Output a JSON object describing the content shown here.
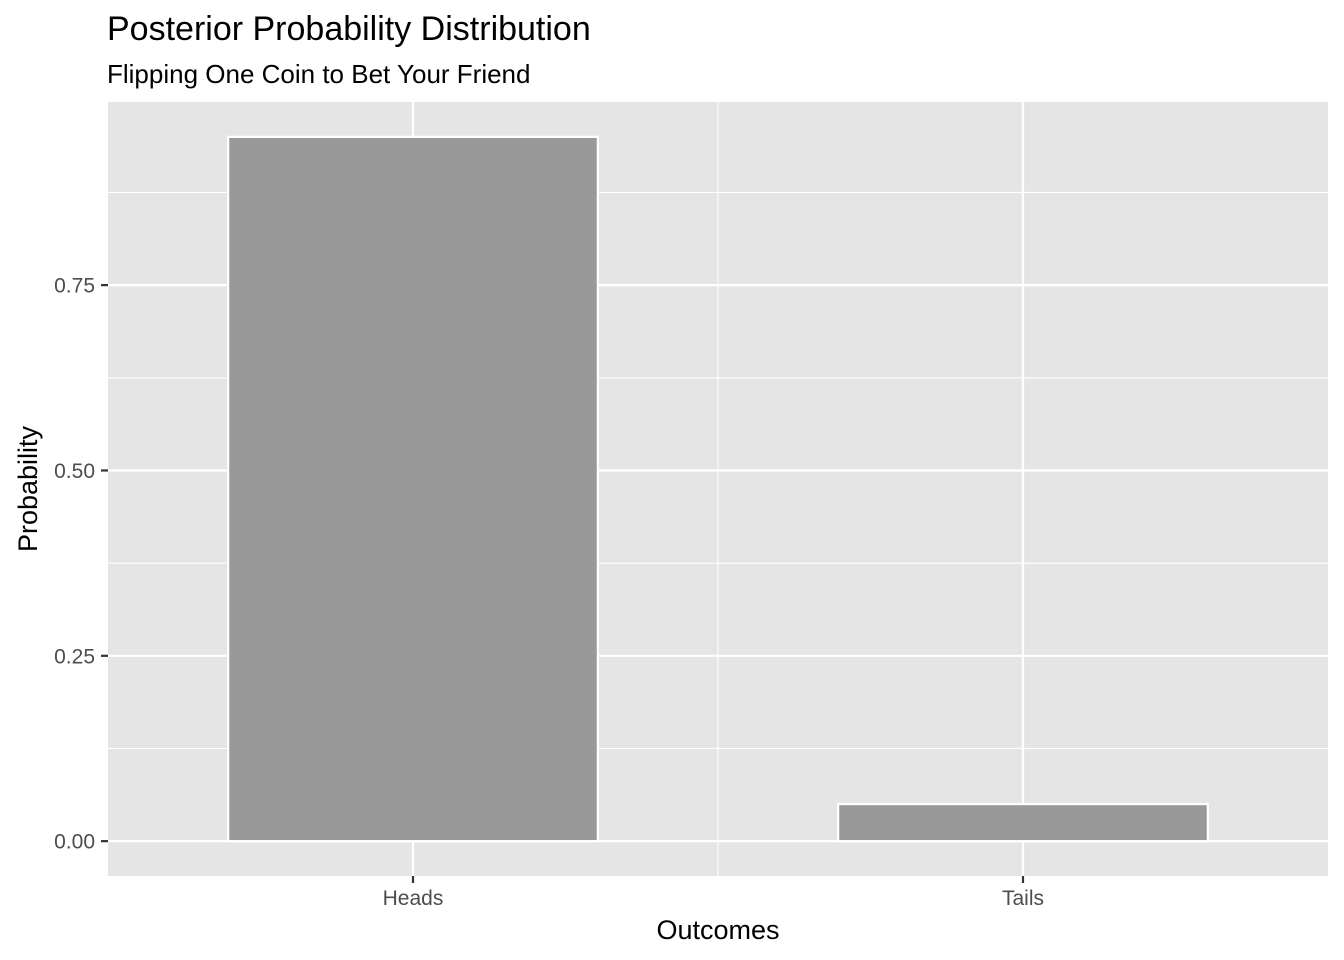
{
  "chart_data": {
    "type": "bar",
    "title": "Posterior Probability Distribution",
    "subtitle": "Flipping One Coin to Bet Your Friend",
    "xlabel": "Outcomes",
    "ylabel": "Probability",
    "categories": [
      "Heads",
      "Tails"
    ],
    "values": [
      0.95,
      0.05
    ],
    "ylim": [
      -0.047,
      0.997
    ],
    "yticks": [
      0.0,
      0.25,
      0.5,
      0.75
    ],
    "ytick_labels": [
      "0.00",
      "0.25",
      "0.50",
      "0.75"
    ],
    "grid": true,
    "colors": {
      "panel_background": "#e5e5e5",
      "gridline": "#ffffff",
      "bar_fill": "#999999",
      "bar_outline": "#ffffff",
      "tick_mark": "#333333"
    }
  }
}
